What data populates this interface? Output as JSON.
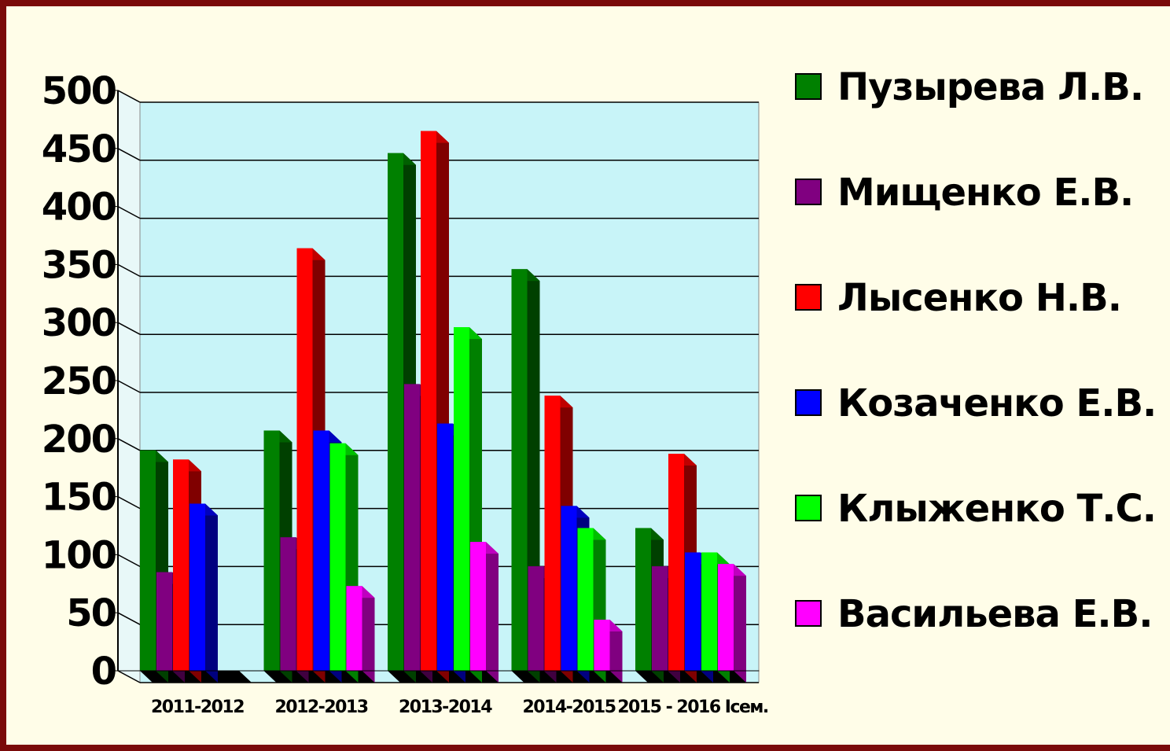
{
  "chart_data": {
    "type": "bar3d",
    "categories": [
      "2011-2012",
      "2012-2013",
      "2013-2014",
      "2014-2015",
      "2015 - 2016 Iсем."
    ],
    "series": [
      {
        "name": "Пузырева Л.В.",
        "color": "#008000",
        "values": [
          190,
          207,
          446,
          346,
          123
        ]
      },
      {
        "name": "Мищенко Е.В.",
        "color": "#800080",
        "values": [
          85,
          115,
          247,
          90,
          90
        ]
      },
      {
        "name": "Лысенко Н.В.",
        "color": "#ff0000",
        "values": [
          182,
          364,
          465,
          237,
          187
        ]
      },
      {
        "name": "Козаченко Е.В.",
        "color": "#0000ff",
        "values": [
          144,
          207,
          213,
          142,
          102
        ]
      },
      {
        "name": "Клыженко Т.С.",
        "color": "#00ff00",
        "values": [
          0,
          196,
          296,
          123,
          102
        ]
      },
      {
        "name": "Васильева Е.В.",
        "color": "#ff00ff",
        "values": [
          0,
          73,
          111,
          44,
          92
        ]
      }
    ],
    "ylim": [
      0,
      500
    ],
    "yticks": [
      0,
      50,
      100,
      150,
      200,
      250,
      300,
      350,
      400,
      450,
      500
    ],
    "grid": true,
    "legend": "right"
  }
}
